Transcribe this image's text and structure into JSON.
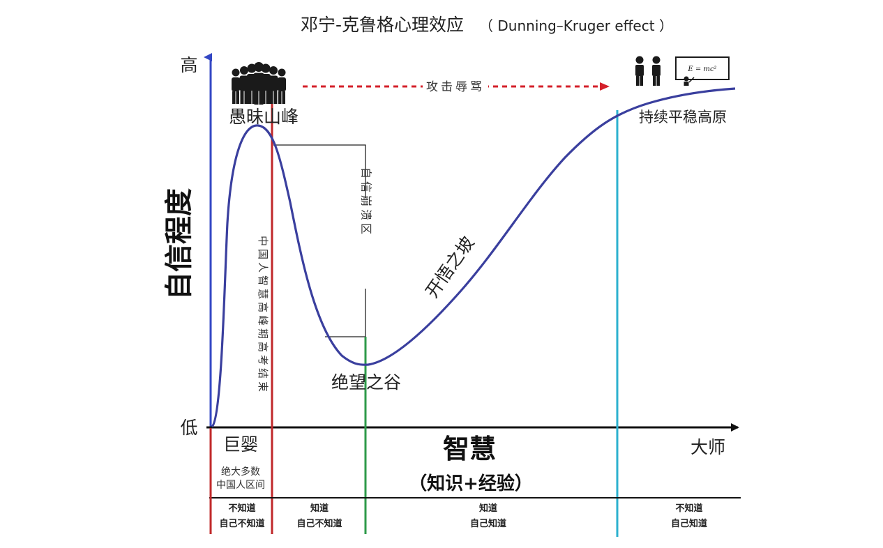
{
  "title": "邓宁-克鲁格心理效应",
  "subtitle": "（ Dunning–Kruger effect ）",
  "y_axis": {
    "label": "自信程度",
    "high": "高",
    "low": "低"
  },
  "x_axis": {
    "label": "智慧",
    "sublabel": "（知识+经验）",
    "end": "大师",
    "start": "巨婴"
  },
  "curve_labels": {
    "peak": "愚昧山峰",
    "valley": "绝望之谷",
    "slope": "开悟之坡",
    "plateau": "持续平稳高原",
    "collapse_zone": "自信崩溃区",
    "red_line_note": "中国人智慧高峰期高考结束"
  },
  "arrow_label": "攻击辱骂",
  "majority_note": [
    "绝大多数",
    "中国人区间"
  ],
  "stages": [
    {
      "line1": "不知道",
      "line2": "自己不知道"
    },
    {
      "line1": "知道",
      "line2": "自己不知道"
    },
    {
      "line1": "知道",
      "line2": "自己知道"
    },
    {
      "line1": "不知道",
      "line2": "自己知道"
    }
  ],
  "board_text": "E = mc²",
  "icons": {
    "crowd": "crowd-icon",
    "pair": "two-people-icon",
    "board": "blackboard-teacher-icon"
  },
  "colors": {
    "curve": "#3a3f9e",
    "axis_y": "#3347c4",
    "axis_x": "#111111",
    "red_line": "#c0282a",
    "green_line": "#2e9a4a",
    "cyan_line": "#2bb1cf",
    "arrow": "#d4202a"
  }
}
